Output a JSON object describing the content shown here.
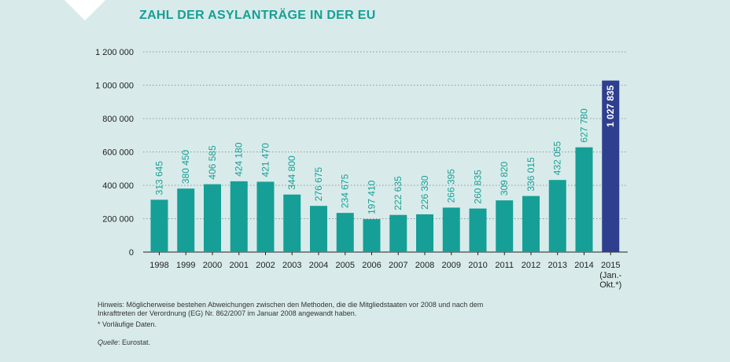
{
  "title": "ZAHL DER ASYLANTRÄGE IN DER EU",
  "chart_data": {
    "type": "bar",
    "title": "ZAHL DER ASYLANTRÄGE IN DER EU",
    "categories": [
      "1998",
      "1999",
      "2000",
      "2001",
      "2002",
      "2003",
      "2004",
      "2005",
      "2006",
      "2007",
      "2008",
      "2009",
      "2010",
      "2011",
      "2012",
      "2013",
      "2014",
      "2015"
    ],
    "category_sublabels": {
      "2015": [
        "(Jan.-",
        "Okt.*)"
      ]
    },
    "values": [
      313645,
      380450,
      406585,
      424180,
      421470,
      344800,
      276675,
      234675,
      197410,
      222635,
      226330,
      266395,
      260835,
      309820,
      336015,
      432055,
      627780,
      1027835
    ],
    "value_labels": [
      "313 645",
      "380 450",
      "406 585",
      "424 180",
      "421 470",
      "344 800",
      "276 675",
      "234 675",
      "197 410",
      "222 635",
      "226 330",
      "266 395",
      "260 835",
      "309 820",
      "336 015",
      "432 055",
      "627 780",
      "1 027 835"
    ],
    "highlight_index": 17,
    "ylim": [
      0,
      1200000
    ],
    "yticks": [
      0,
      200000,
      400000,
      600000,
      800000,
      1000000,
      1200000
    ],
    "ytick_labels": [
      "0",
      "200 000",
      "400 000",
      "600 000",
      "800 000",
      "1 000 000",
      "1 200 000"
    ],
    "grid": true,
    "colors": {
      "bar": "#169f96",
      "highlight": "#2f3f8f",
      "label": "#169f96",
      "highlight_label": "#ffffff"
    }
  },
  "notes": {
    "hint_line1": "Hinweis: Möglicherweise bestehen Abweichungen zwischen den Methoden, die die Mitgliedstaaten vor 2008 und nach dem",
    "hint_line2": "Inkrafttreten der Verordnung (EG) Nr. 862/2007 im Januar 2008 angewandt haben.",
    "provisional": "* Vorläufige Daten.",
    "source_label": "Quelle",
    "source_text": ": Eurostat."
  }
}
